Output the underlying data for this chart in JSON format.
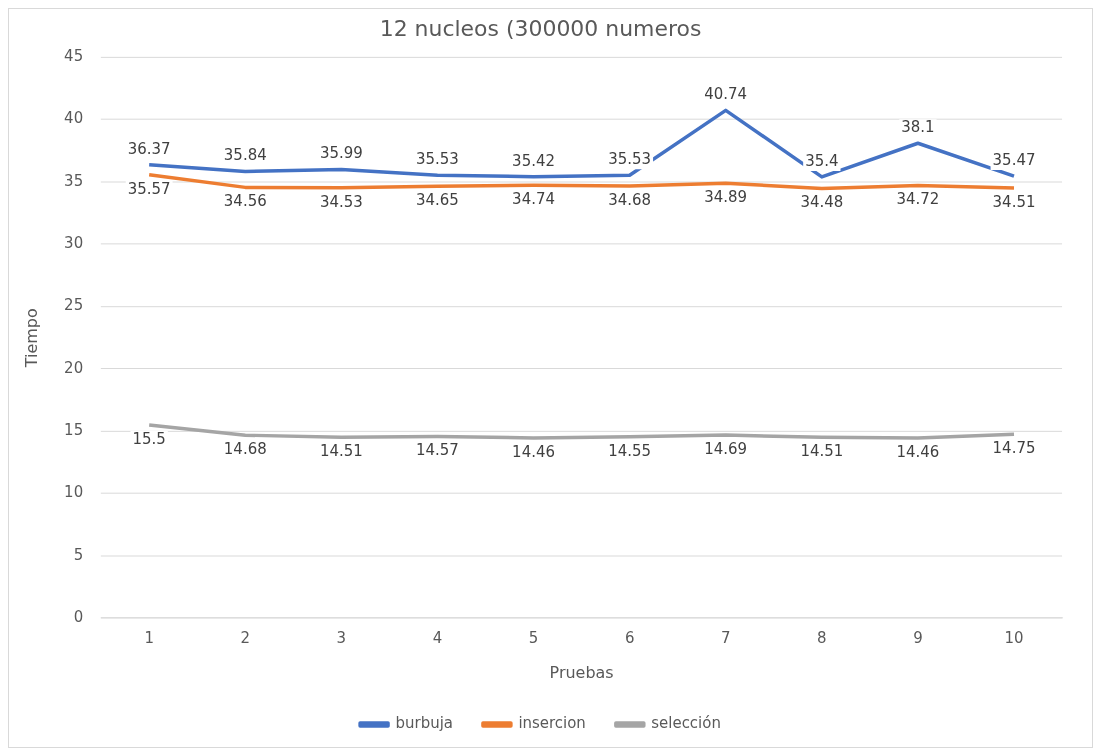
{
  "chart_data": {
    "type": "line",
    "title": "12 nucleos (300000 numeros",
    "xlabel": "Pruebas",
    "ylabel": "Tiempo",
    "categories": [
      "1",
      "2",
      "3",
      "4",
      "5",
      "6",
      "7",
      "8",
      "9",
      "10"
    ],
    "series": [
      {
        "name": "burbuja",
        "color": "#4472c4",
        "values": [
          36.37,
          35.84,
          35.99,
          35.53,
          35.42,
          35.53,
          40.74,
          35.4,
          38.1,
          35.47
        ]
      },
      {
        "name": "insercion",
        "color": "#ed7d31",
        "values": [
          35.57,
          34.56,
          34.53,
          34.65,
          34.74,
          34.68,
          34.89,
          34.48,
          34.72,
          34.51
        ]
      },
      {
        "name": "selección",
        "color": "#a5a5a5",
        "values": [
          15.5,
          14.68,
          14.51,
          14.57,
          14.46,
          14.55,
          14.69,
          14.51,
          14.46,
          14.75
        ]
      }
    ],
    "ylim": [
      0,
      45
    ],
    "yticks": [
      0,
      5,
      10,
      15,
      20,
      25,
      30,
      35,
      40,
      45
    ],
    "grid": "y",
    "legend": "bottom",
    "marker": "none",
    "line_style": "solid",
    "data_labels": true
  }
}
